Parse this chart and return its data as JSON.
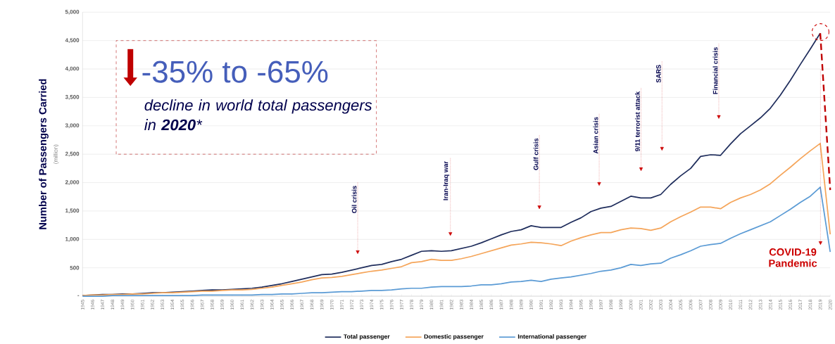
{
  "chart_data": {
    "type": "line",
    "ylabel": "Number of Passengers Carried",
    "categories": [
      "1945",
      "1946",
      "1947",
      "1948",
      "1949",
      "1950",
      "1951",
      "1952",
      "1953",
      "1954",
      "1955",
      "1956",
      "1957",
      "1958",
      "1959",
      "1960",
      "1961",
      "1962",
      "1963",
      "1964",
      "1965",
      "1966",
      "1967",
      "1968",
      "1969",
      "1970",
      "1971",
      "1972",
      "1973",
      "1974",
      "1975",
      "1976",
      "1977",
      "1978",
      "1979",
      "1980",
      "1981",
      "1982",
      "1983",
      "1984",
      "1985",
      "1986",
      "1987",
      "1988",
      "1989",
      "1990",
      "1991",
      "1992",
      "1993",
      "1994",
      "1995",
      "1996",
      "1997",
      "1998",
      "1999",
      "2000",
      "2001",
      "2002",
      "2003",
      "2004",
      "2005",
      "2006",
      "2007",
      "2008",
      "2009",
      "2010",
      "2011",
      "2012",
      "2013",
      "2014",
      "2015",
      "2016",
      "2017",
      "2018",
      "2019",
      "2020"
    ],
    "series": [
      {
        "name": "Total passenger",
        "color": "#1f2d5c",
        "values": [
          10,
          20,
          30,
          30,
          40,
          40,
          50,
          60,
          60,
          70,
          80,
          90,
          100,
          110,
          110,
          120,
          130,
          140,
          160,
          190,
          220,
          260,
          300,
          340,
          380,
          390,
          420,
          460,
          500,
          540,
          560,
          610,
          650,
          720,
          790,
          800,
          790,
          800,
          840,
          880,
          940,
          1010,
          1080,
          1140,
          1170,
          1240,
          1210,
          1210,
          1210,
          1300,
          1380,
          1490,
          1550,
          1580,
          1670,
          1760,
          1730,
          1730,
          1790,
          1970,
          2120,
          2250,
          2460,
          2490,
          2480,
          2680,
          2860,
          3000,
          3140,
          3310,
          3540,
          3800,
          4080,
          4350,
          4630,
          null
        ]
      },
      {
        "name": "Domestic passenger",
        "color": "#f5a55a",
        "values": [
          10,
          20,
          20,
          30,
          30,
          40,
          40,
          50,
          60,
          60,
          70,
          80,
          90,
          90,
          100,
          110,
          110,
          120,
          140,
          160,
          190,
          220,
          250,
          290,
          320,
          330,
          350,
          380,
          410,
          440,
          460,
          490,
          520,
          590,
          610,
          650,
          630,
          630,
          660,
          700,
          750,
          800,
          850,
          900,
          920,
          950,
          940,
          920,
          890,
          970,
          1030,
          1080,
          1120,
          1120,
          1170,
          1200,
          1190,
          1160,
          1200,
          1310,
          1400,
          1480,
          1570,
          1570,
          1540,
          1650,
          1730,
          1790,
          1870,
          1980,
          2130,
          2270,
          2420,
          2560,
          2690,
          1090
        ]
      },
      {
        "name": "International passenger",
        "color": "#5b9bd5",
        "values": [
          0,
          0,
          0,
          10,
          10,
          10,
          10,
          10,
          10,
          10,
          10,
          10,
          20,
          20,
          20,
          20,
          20,
          20,
          30,
          30,
          40,
          40,
          50,
          60,
          60,
          70,
          80,
          80,
          90,
          100,
          100,
          110,
          130,
          140,
          140,
          160,
          170,
          170,
          170,
          180,
          200,
          200,
          220,
          250,
          260,
          280,
          260,
          300,
          320,
          340,
          370,
          400,
          440,
          460,
          500,
          560,
          540,
          570,
          580,
          670,
          730,
          800,
          880,
          910,
          930,
          1020,
          1100,
          1170,
          1240,
          1310,
          1420,
          1530,
          1650,
          1760,
          1920,
          780
        ]
      },
      {
        "type": "line",
        "color": "#c00000",
        "line_style": "dashed",
        "values": [
          null,
          null,
          null,
          null,
          null,
          null,
          null,
          null,
          null,
          null,
          null,
          null,
          null,
          null,
          null,
          null,
          null,
          null,
          null,
          null,
          null,
          null,
          null,
          null,
          null,
          null,
          null,
          null,
          null,
          null,
          null,
          null,
          null,
          null,
          null,
          null,
          null,
          null,
          null,
          null,
          null,
          null,
          null,
          null,
          null,
          null,
          null,
          null,
          null,
          null,
          null,
          null,
          null,
          null,
          null,
          null,
          null,
          null,
          null,
          null,
          null,
          null,
          null,
          null,
          null,
          null,
          null,
          null,
          null,
          null,
          null,
          null,
          null,
          null,
          4630,
          1870
        ]
      }
    ],
    "ylim": [
      0,
      5000
    ],
    "yticks": [
      {
        "value": 0,
        "label": "-"
      },
      500,
      {
        "value": 1000,
        "label": "1,000"
      },
      {
        "value": 1500,
        "label": "1,500"
      },
      {
        "value": 2000,
        "label": "2,000"
      },
      {
        "value": 2500,
        "label": "2,500"
      },
      {
        "value": 3000,
        "label": "3,000"
      },
      {
        "value": 3500,
        "label": "3,500"
      },
      {
        "value": 4000,
        "label": "4,000"
      },
      {
        "value": 4500,
        "label": "4,500"
      },
      {
        "value": 5000,
        "label": "5,000"
      }
    ],
    "grid": "y",
    "legend": "bottom",
    "annotations": [
      "-35% to -65%",
      "decline in world total passengers in **2020***",
      "(million)",
      "Oil crisis",
      "Iran-Iraq war",
      "Gulf crisis",
      "Asian crisis",
      "9/11 terrorist attack",
      "SARS",
      "Financial crisis",
      "COVID-19 Pandemic"
    ]
  }
}
